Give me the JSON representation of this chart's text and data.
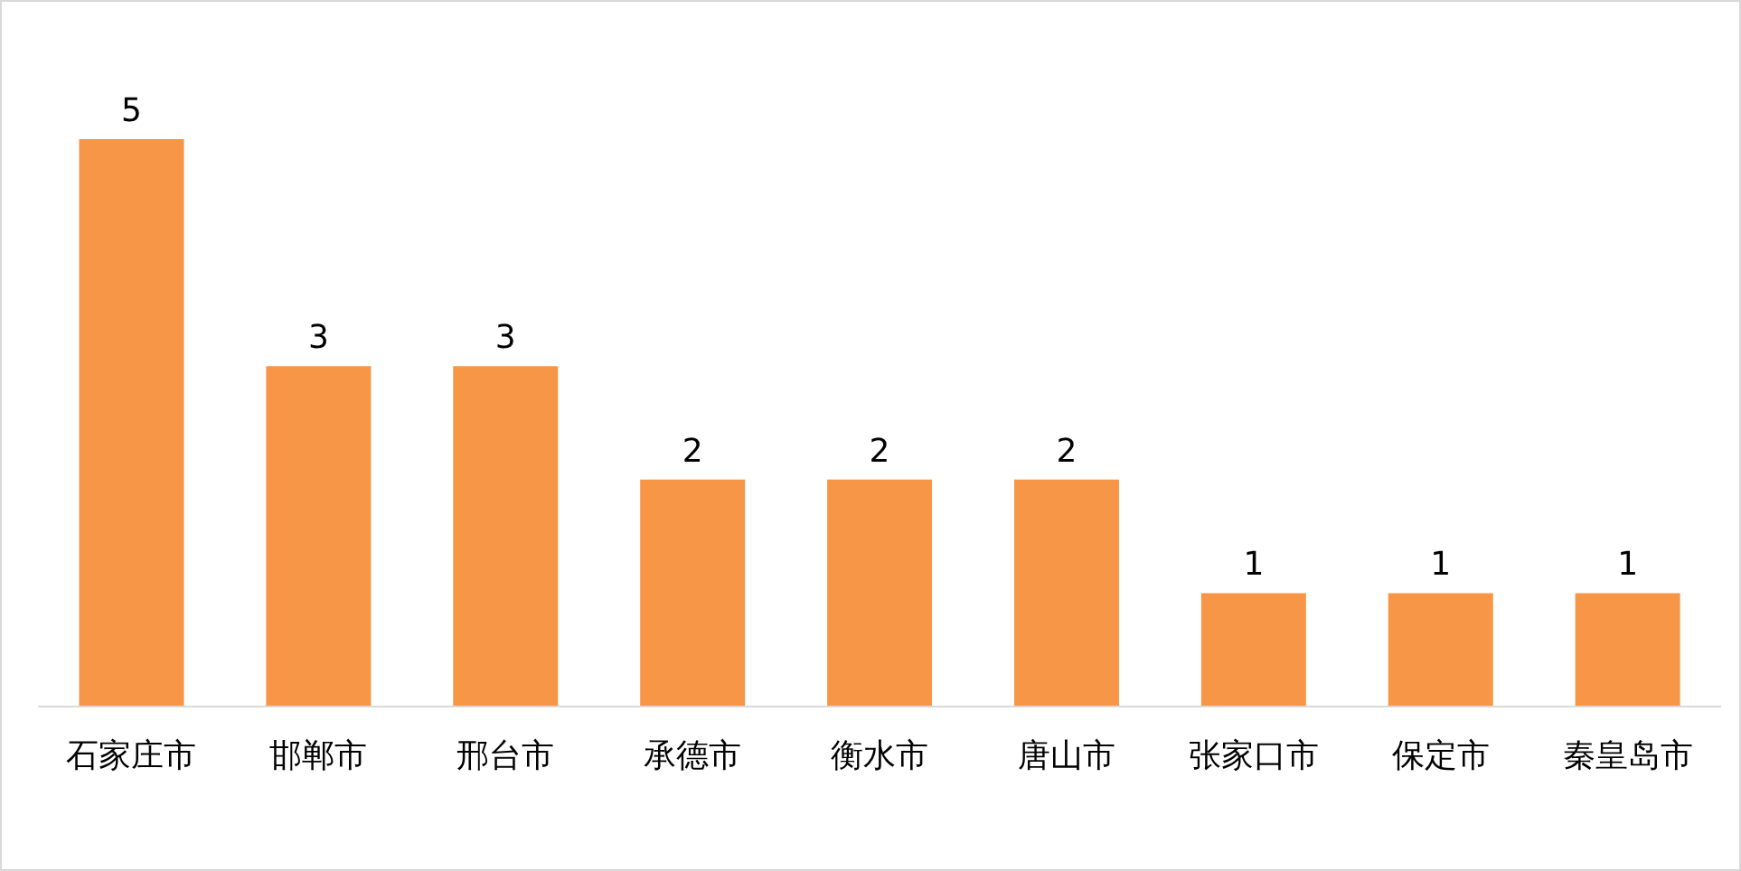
{
  "chart_data": {
    "type": "bar",
    "categories": [
      "石家庄市",
      "邯郸市",
      "邢台市",
      "承德市",
      "衡水市",
      "唐山市",
      "张家口市",
      "保定市",
      "秦皇岛市"
    ],
    "values": [
      5,
      3,
      3,
      2,
      2,
      2,
      1,
      1,
      1
    ],
    "color": "#f79646",
    "data_labels": true,
    "grid": false
  }
}
